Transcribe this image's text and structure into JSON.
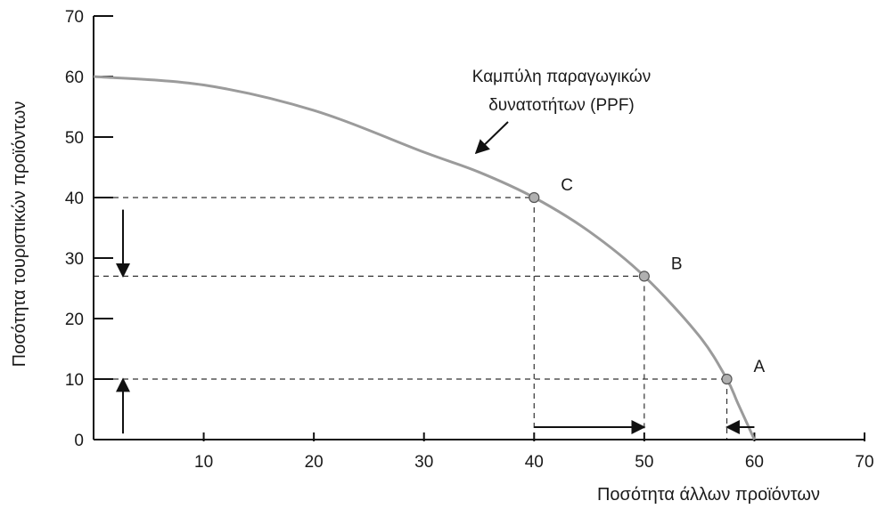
{
  "chart_data": {
    "type": "line",
    "xlabel": "Ποσότητα άλλων προϊόντων",
    "ylabel": "Ποσότητα τουριστικών προϊόντων",
    "xlim": [
      0,
      70
    ],
    "ylim": [
      0,
      70
    ],
    "x_ticks": [
      10,
      20,
      30,
      40,
      50,
      60,
      70
    ],
    "y_ticks": [
      0,
      10,
      20,
      30,
      40,
      50,
      60,
      70
    ],
    "grid": false,
    "series": [
      {
        "name": "Καμπύλη παραγωγικών δυνατοτήτων (PPF)",
        "color": "#9b9b9b",
        "points": [
          [
            0,
            60
          ],
          [
            10,
            58.6
          ],
          [
            20,
            54.4
          ],
          [
            30,
            47.5
          ],
          [
            35,
            44.2
          ],
          [
            40,
            40
          ],
          [
            45,
            34.4
          ],
          [
            50,
            27
          ],
          [
            55,
            17.1
          ],
          [
            57.5,
            10
          ],
          [
            58.5,
            6
          ],
          [
            60,
            0
          ]
        ]
      }
    ],
    "points": [
      {
        "label": "A",
        "x": 57.5,
        "y": 10
      },
      {
        "label": "B",
        "x": 50,
        "y": 27
      },
      {
        "label": "C",
        "x": 40,
        "y": 40
      }
    ],
    "curve_label_lines": [
      "Καμπύλη παραγωγικών",
      "δυνατοτήτων (PPF)"
    ],
    "arrows": [
      {
        "axis": "x",
        "from": 40,
        "to": 50
      },
      {
        "axis": "x",
        "from": 60,
        "to": 57.5
      },
      {
        "axis": "y",
        "from": 38,
        "to": 27
      },
      {
        "axis": "y",
        "from": 1,
        "to": 10
      }
    ]
  }
}
